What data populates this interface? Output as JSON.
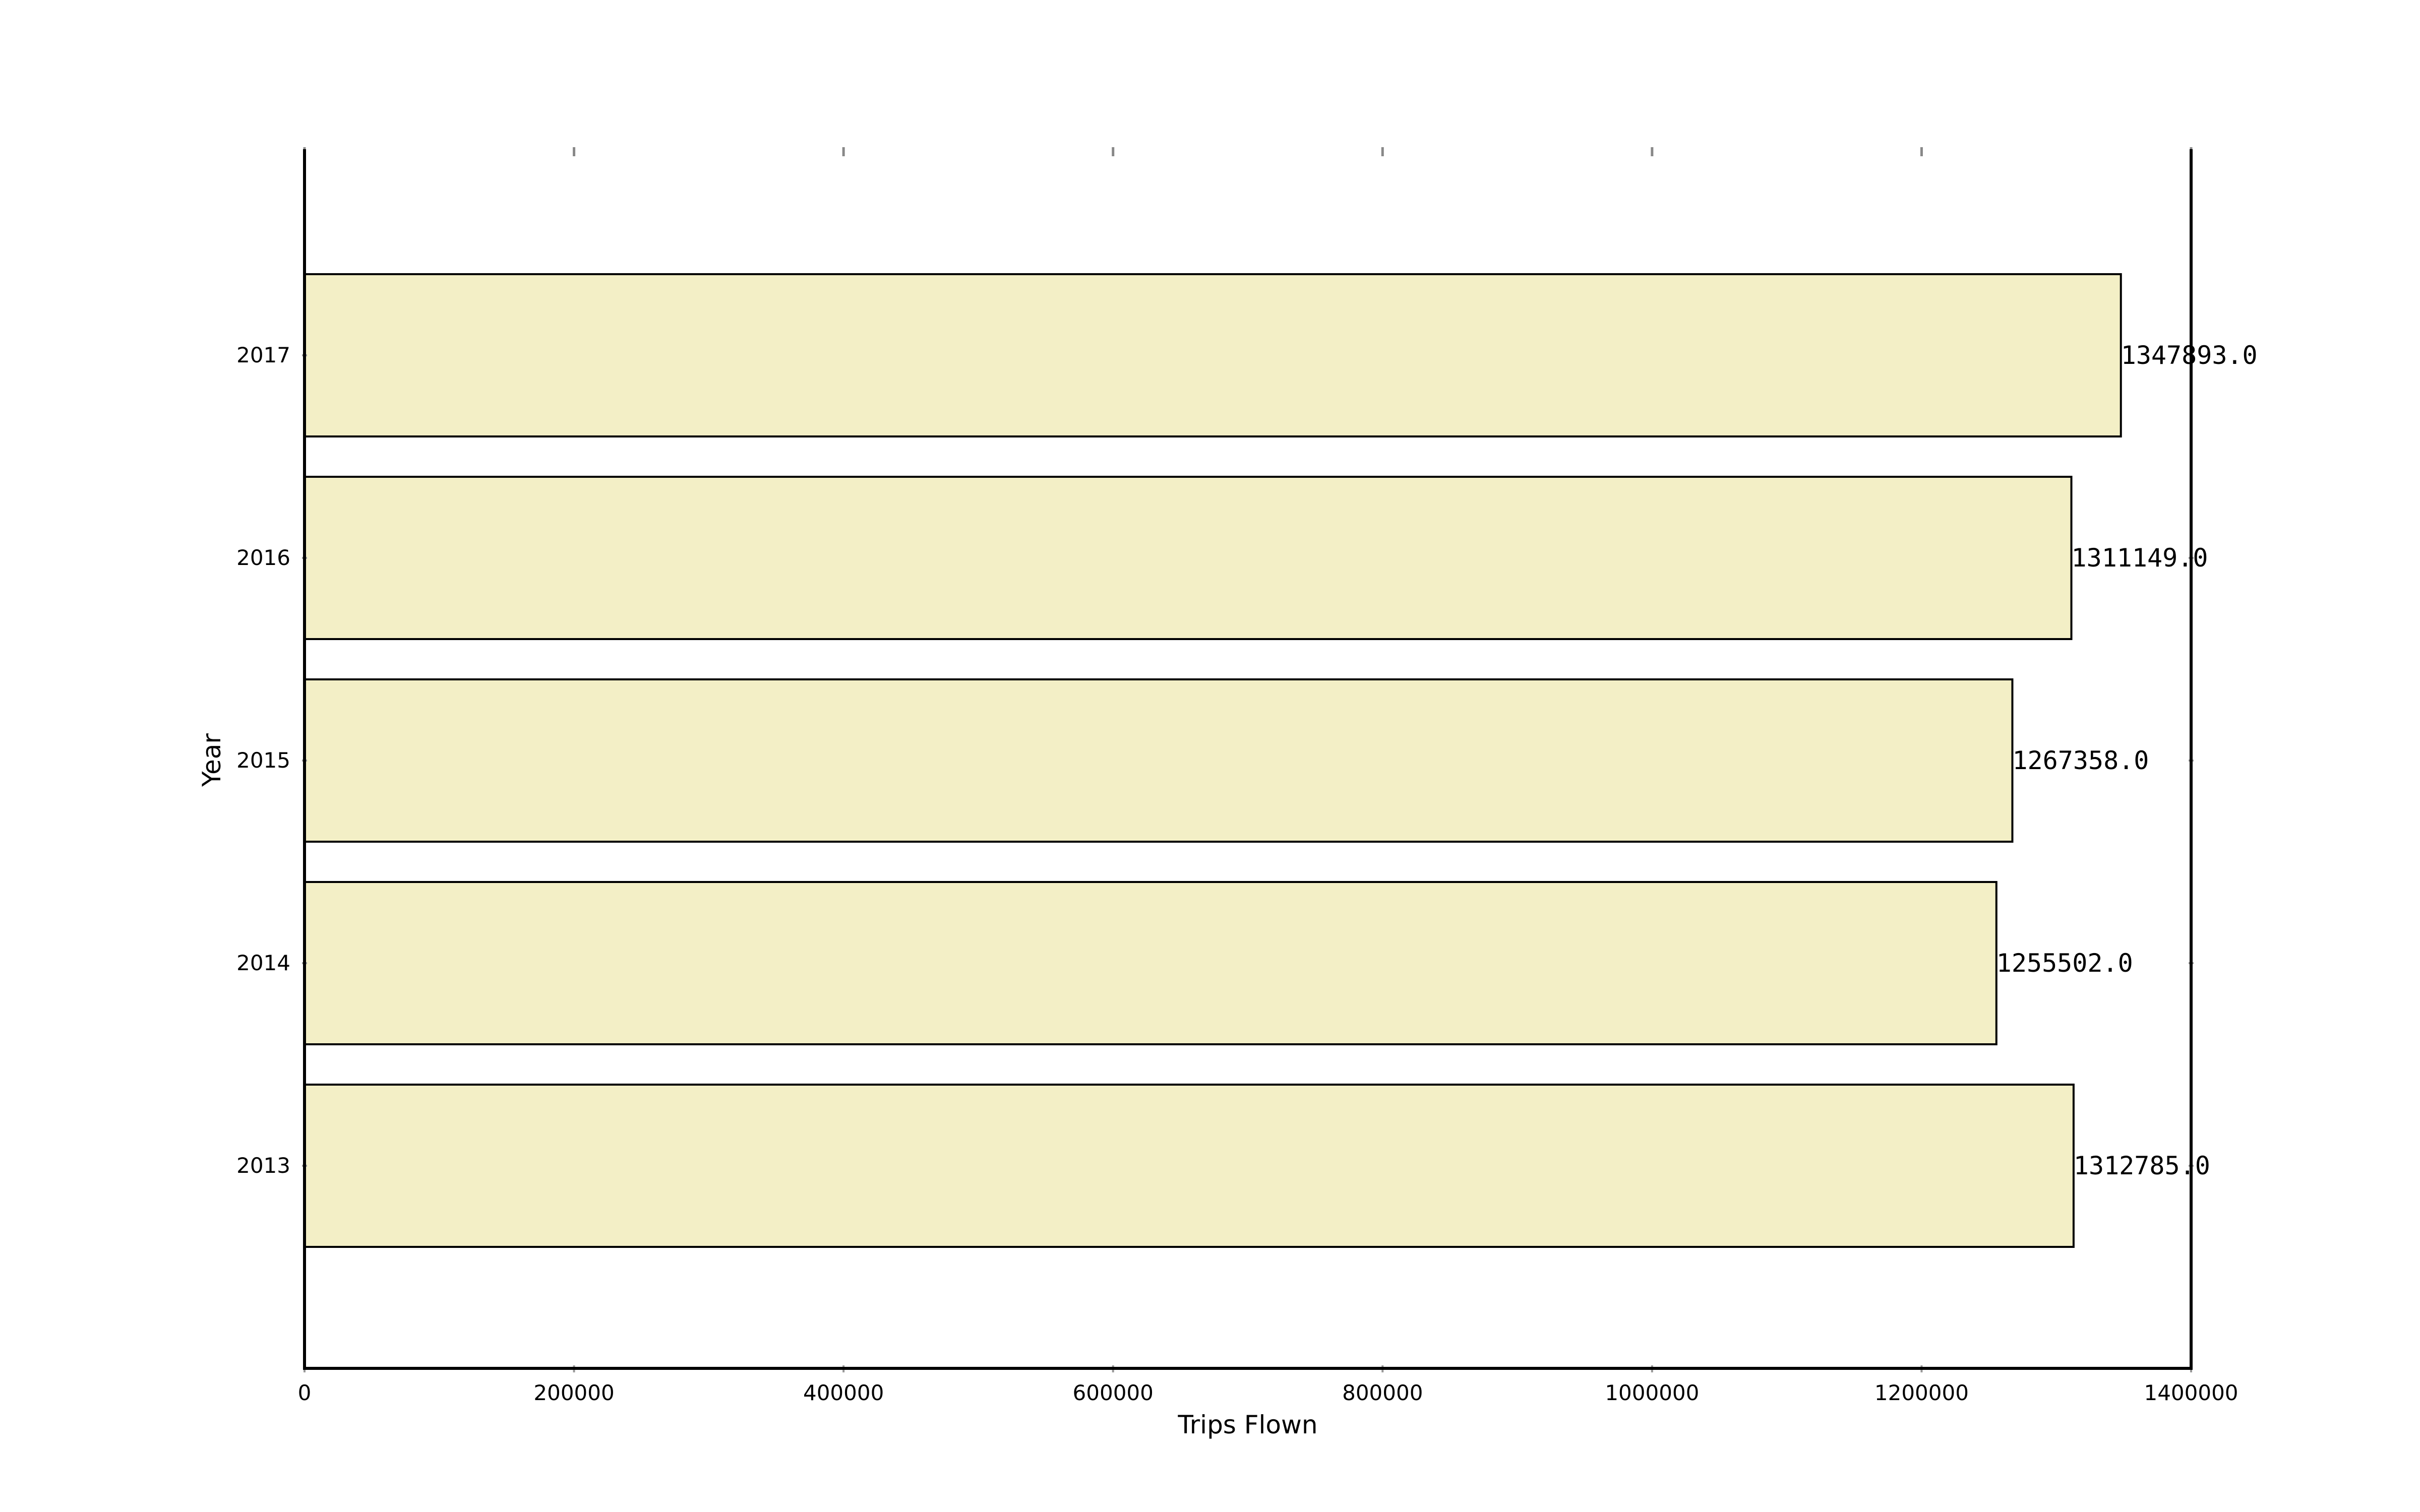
{
  "chart_data": {
    "type": "bar",
    "orientation": "horizontal",
    "categories": [
      "2013",
      "2014",
      "2015",
      "2016",
      "2017"
    ],
    "values": [
      1312785.0,
      1255502.0,
      1267358.0,
      1311149.0,
      1347893.0
    ],
    "data_labels": [
      "1312785.0",
      "1255502.0",
      "1267358.0",
      "1311149.0",
      "1347893.0"
    ],
    "xlabel": "Trips Flown",
    "ylabel": "Year",
    "xlim": [
      0,
      1400000
    ],
    "xticks": [
      0,
      200000,
      400000,
      600000,
      800000,
      1000000,
      1200000,
      1400000
    ],
    "xtick_labels": [
      "0",
      "200000",
      "400000",
      "600000",
      "800000",
      "1000000",
      "1200000",
      "1400000"
    ],
    "grid": false,
    "bar_color": "#f3efc6",
    "bar_edge_color": "#000000"
  }
}
